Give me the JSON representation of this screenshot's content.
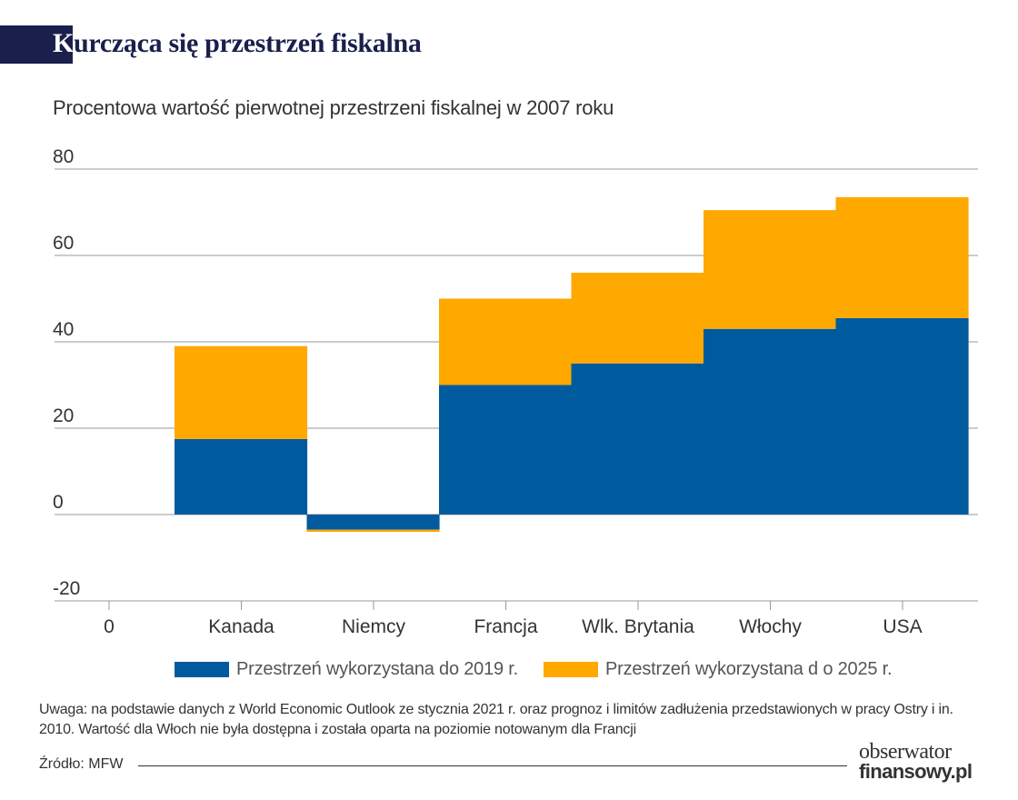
{
  "title": {
    "first_letter": "K",
    "rest": "urcząca się przestrzeń fiskalna"
  },
  "chart_data": {
    "type": "bar",
    "stacked": true,
    "title": "Kurcząca się przestrzeń fiskalna",
    "subtitle": "Procentowa wartość pierwotnej przestrzeni fiskalnej w 2007 roku",
    "xlabel": "",
    "ylabel": "",
    "categories": [
      "Kanada",
      "Niemcy",
      "Francja",
      "Wlk. Brytania",
      "Włochy",
      "USA"
    ],
    "x_origin_label": "0",
    "series": [
      {
        "name": "Przestrzeń wykorzystana do 2019 r.",
        "color": "#005b9e",
        "values": [
          17.5,
          -3.5,
          30,
          35,
          43,
          45.5
        ]
      },
      {
        "name": "Przestrzeń wykorzystana d o 2025 r.",
        "color": "#ffa800",
        "values": [
          21.5,
          -0.5,
          20,
          21,
          27.5,
          28
        ]
      }
    ],
    "ylim": [
      -20,
      80
    ],
    "yticks": [
      -20,
      0,
      20,
      40,
      60,
      80
    ],
    "ytick_labels": [
      "-20",
      "0",
      "20",
      "40",
      "60",
      "80"
    ],
    "grid": true,
    "legend_position": "bottom"
  },
  "note": "Uwaga: na podstawie danych z World Economic Outlook ze stycznia 2021 r. oraz prognoz i limitów zadłużenia przedstawionych w pracy Ostry i in. 2010. Wartość dla Włoch nie była dostępna i została oparta na poziomie notowanym dla Francji",
  "source": "Źródło: MFW",
  "logo": {
    "line1": "obserwator",
    "line2": "finansowy.pl",
    "colors": {
      "text": "#333333"
    }
  },
  "colors": {
    "title": "#1a1f4b",
    "grid": "#999999",
    "text": "#333333"
  }
}
